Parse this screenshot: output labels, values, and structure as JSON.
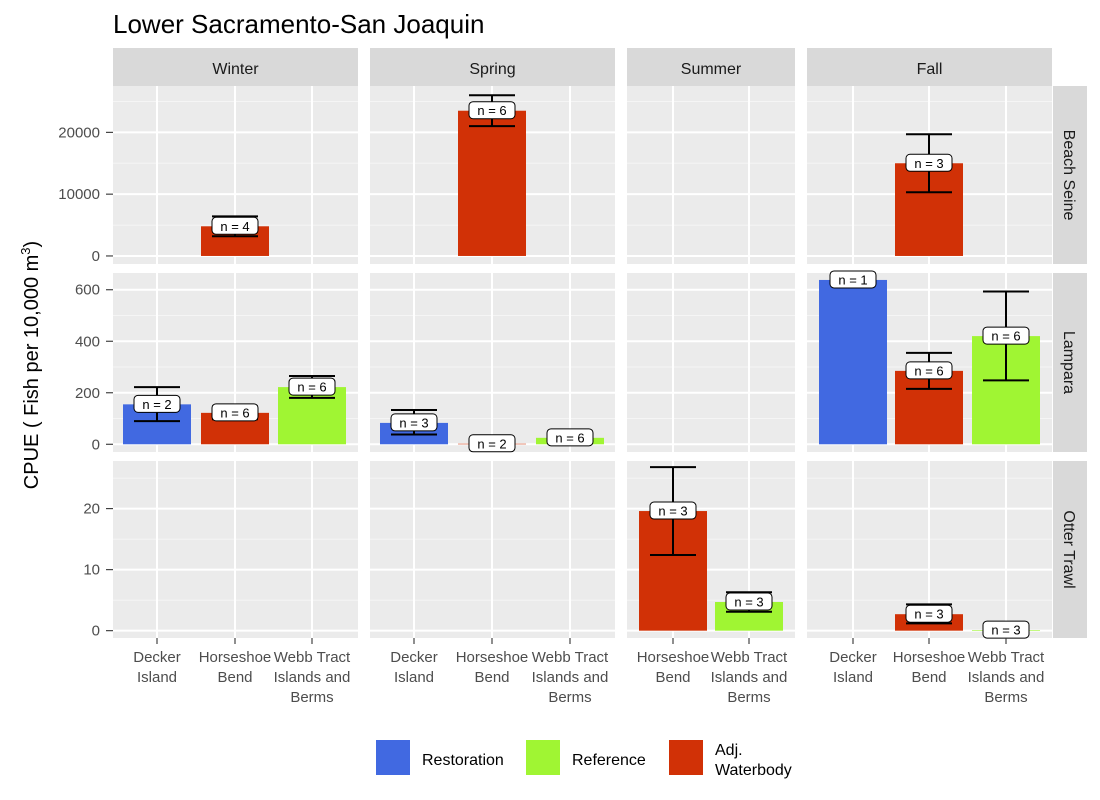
{
  "chart_data": {
    "type": "bar",
    "title": "Lower Sacramento-San Joaquin",
    "ylabel": "CPUE ( Fish per 10,000 m³)",
    "ylabel_main": "CPUE ( Fish per 10,000 m",
    "ylabel_sup": "3",
    "ylabel_close": ")",
    "legend": {
      "position": "bottom",
      "items": [
        {
          "key": "Restoration",
          "label": [
            "Restoration"
          ],
          "color": "#4169E1"
        },
        {
          "key": "Reference",
          "label": [
            "Reference"
          ],
          "color": "#A0F533"
        },
        {
          "key": "Adj. Waterbody",
          "label": [
            "Adj.",
            "Waterbody"
          ],
          "color": "#D13106"
        }
      ]
    },
    "seasons": [
      {
        "name": "Winter",
        "categories": [
          [
            "Decker",
            "Island"
          ],
          [
            "Horseshoe",
            "Bend"
          ],
          [
            "Webb Tract",
            "Islands and",
            "Berms"
          ]
        ]
      },
      {
        "name": "Spring",
        "categories": [
          [
            "Decker",
            "Island"
          ],
          [
            "Horseshoe",
            "Bend"
          ],
          [
            "Webb Tract",
            "Islands and",
            "Berms"
          ]
        ]
      },
      {
        "name": "Summer",
        "categories": [
          [
            "Horseshoe",
            "Bend"
          ],
          [
            "Webb Tract",
            "Islands and",
            "Berms"
          ]
        ]
      },
      {
        "name": "Fall",
        "categories": [
          [
            "Decker",
            "Island"
          ],
          [
            "Horseshoe",
            "Bend"
          ],
          [
            "Webb Tract",
            "Islands and",
            "Berms"
          ]
        ]
      }
    ],
    "methods": [
      {
        "name": "Beach Seine",
        "ylim": [
          -1300,
          27500
        ],
        "ticks": [
          0,
          10000,
          20000
        ],
        "tick_labels": [
          "0",
          "10000",
          "20000"
        ],
        "bars": [
          {
            "season": "Winter",
            "cat": 1,
            "type": "Adj. Waterbody",
            "value": 4800,
            "lo": 3200,
            "hi": 6400,
            "n": "n = 4"
          },
          {
            "season": "Spring",
            "cat": 1,
            "type": "Adj. Waterbody",
            "value": 23500,
            "lo": 21000,
            "hi": 26000,
            "n": "n = 6"
          },
          {
            "season": "Fall",
            "cat": 1,
            "type": "Adj. Waterbody",
            "value": 15000,
            "lo": 10300,
            "hi": 19700,
            "n": "n = 3"
          }
        ]
      },
      {
        "name": "Lampara",
        "ylim": [
          -30,
          665
        ],
        "ticks": [
          0,
          200,
          400,
          600
        ],
        "tick_labels": [
          "0",
          "200",
          "400",
          "600"
        ],
        "bars": [
          {
            "season": "Winter",
            "cat": 0,
            "type": "Restoration",
            "value": 155,
            "lo": 90,
            "hi": 222,
            "n": "n = 2"
          },
          {
            "season": "Winter",
            "cat": 1,
            "type": "Adj. Waterbody",
            "value": 122,
            "lo": 97,
            "hi": 147,
            "n": "n = 6"
          },
          {
            "season": "Winter",
            "cat": 2,
            "type": "Reference",
            "value": 222,
            "lo": 180,
            "hi": 265,
            "n": "n = 6"
          },
          {
            "season": "Spring",
            "cat": 0,
            "type": "Restoration",
            "value": 83,
            "lo": 38,
            "hi": 133,
            "n": "n = 3"
          },
          {
            "season": "Spring",
            "cat": 1,
            "type": "Adj. Waterbody",
            "value": 2,
            "lo": 0,
            "hi": 4,
            "n": "n = 2"
          },
          {
            "season": "Spring",
            "cat": 2,
            "type": "Reference",
            "value": 25,
            "lo": 17,
            "hi": 37,
            "n": "n = 6"
          },
          {
            "season": "Fall",
            "cat": 0,
            "type": "Restoration",
            "value": 638,
            "lo": null,
            "hi": null,
            "n": "n = 1"
          },
          {
            "season": "Fall",
            "cat": 1,
            "type": "Adj. Waterbody",
            "value": 285,
            "lo": 215,
            "hi": 355,
            "n": "n = 6"
          },
          {
            "season": "Fall",
            "cat": 2,
            "type": "Reference",
            "value": 420,
            "lo": 248,
            "hi": 593,
            "n": "n = 6"
          }
        ]
      },
      {
        "name": "Otter Trawl",
        "ylim": [
          -1.2,
          27.8
        ],
        "ticks": [
          0,
          10,
          20
        ],
        "tick_labels": [
          "0",
          "10",
          "20"
        ],
        "bars": [
          {
            "season": "Summer",
            "cat": 0,
            "type": "Adj. Waterbody",
            "value": 19.6,
            "lo": 12.4,
            "hi": 26.8,
            "n": "n = 3"
          },
          {
            "season": "Summer",
            "cat": 1,
            "type": "Reference",
            "value": 4.7,
            "lo": 3.1,
            "hi": 6.3,
            "n": "n = 3"
          },
          {
            "season": "Fall",
            "cat": 1,
            "type": "Adj. Waterbody",
            "value": 2.7,
            "lo": 1.2,
            "hi": 4.3,
            "n": "n = 3"
          },
          {
            "season": "Fall",
            "cat": 2,
            "type": "Reference",
            "value": 0.1,
            "lo": 0,
            "hi": 0.2,
            "n": "n = 3"
          }
        ]
      }
    ],
    "colors": {
      "panel_bg": "#EBEBEB",
      "strip_bg": "#D9D9D9",
      "grid_major": "#FFFFFF",
      "grid_minor": "#F5F5F5"
    }
  }
}
